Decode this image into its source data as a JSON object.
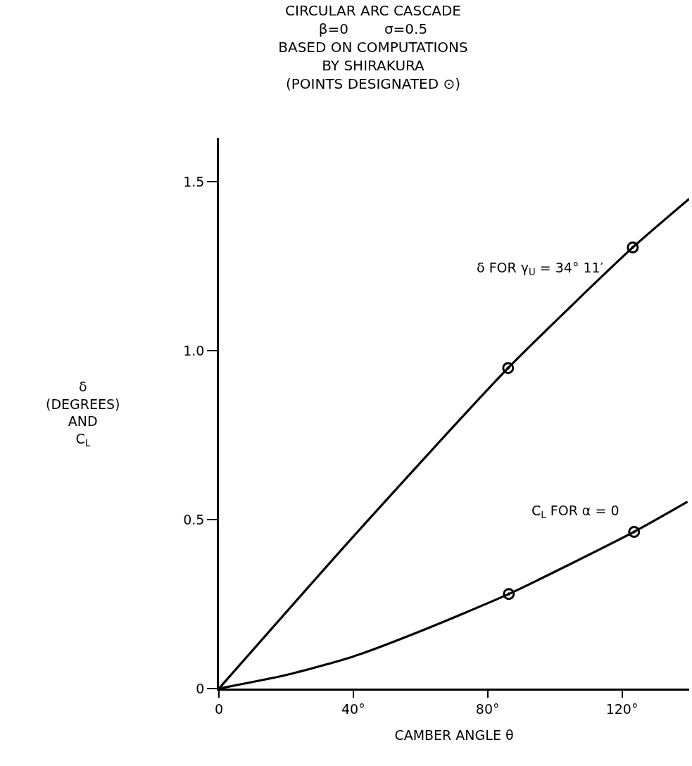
{
  "chart_data": {
    "type": "line",
    "title": "CIRCULAR ARC CASCADE\nβ=0        σ=0.5\nBASED ON COMPUTATIONS\nBY SHIRAKURA\n(POINTS DESIGNATED ⊙)",
    "xlabel": "CAMBER ANGLE θ",
    "ylabel": "δ\n(DEGREES)\nAND\nC$_{L}$",
    "xlim": [
      0,
      140
    ],
    "ylim": [
      0,
      1.63
    ],
    "xticks": [
      {
        "value": 0,
        "label": "0"
      },
      {
        "value": 40,
        "label": "40°"
      },
      {
        "value": 80,
        "label": "80°"
      },
      {
        "value": 120,
        "label": "120°"
      }
    ],
    "yticks": [
      0,
      0.5,
      {
        "value": 1,
        "label": "1.0"
      },
      1.5
    ],
    "legend": false,
    "series": [
      {
        "name": "δ FOR γ$_{U}$ = 34° 11′",
        "color": "#000000",
        "marker": "none",
        "x": [
          0,
          40,
          86.1,
          123.2,
          140
        ],
        "values": [
          0,
          0.45,
          0.949,
          1.306,
          1.45
        ]
      },
      {
        "name": "C$_{L}$ FOR α = 0",
        "color": "#000000",
        "marker": "none",
        "x": [
          0,
          20,
          40,
          60,
          86.3,
          123.6,
          139.5
        ],
        "values": [
          0,
          0.04,
          0.095,
          0.17,
          0.28,
          0.464,
          0.553
        ]
      },
      {
        "type": "scatter",
        "color": "#000000",
        "marker": "circle",
        "x": [
          86.1,
          123.2,
          86.3,
          123.6
        ],
        "values": [
          0.949,
          1.306,
          0.28,
          0.464
        ]
      }
    ]
  }
}
